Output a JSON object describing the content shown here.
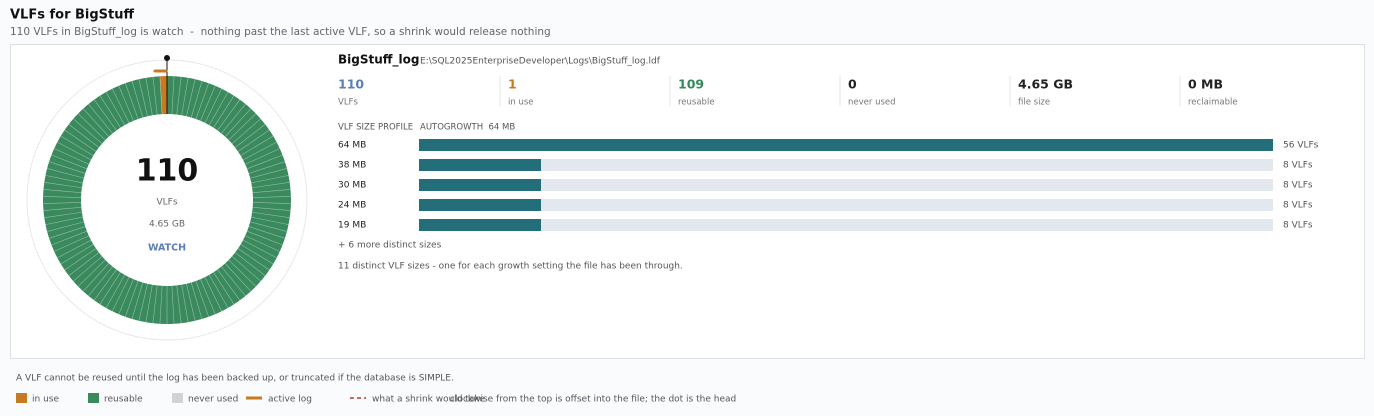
{
  "header": {
    "title": "VLFs for BigStuff",
    "subtitle": "110 VLFs in BigStuff_log is watch  -  nothing past the last active VLF, so a shrink would release nothing"
  },
  "donut": {
    "unit": "VLFs",
    "status": "WATCH",
    "colors": {
      "in_use": "#c77a22",
      "reusable": "#3a8a5e",
      "active_log": "#c77a22"
    }
  },
  "file": {
    "name": "BigStuff_log",
    "path": "E:\\SQL2025EnterpriseDeveloper\\Logs\\BigStuff_log.ldf"
  },
  "stats": [
    {
      "value": 110,
      "label": "VLFs",
      "color": "#5b7fb5"
    },
    {
      "value": 1,
      "label": "in use",
      "color": "#c77a22"
    },
    {
      "value": 109,
      "label": "reusable",
      "color": "#2e8a5a"
    },
    {
      "value": 0,
      "label": "never used",
      "color": "#222222"
    },
    {
      "value": "4.65 GB",
      "label": "file size",
      "color": "#222222"
    },
    {
      "value": "0 MB",
      "label": "reclaimable",
      "color": "#222222"
    }
  ],
  "profile": {
    "title": "VLF SIZE PROFILE",
    "autogrowth": "AUTOGROWTH  64 MB",
    "bar_color": "#236e78",
    "rows": [
      {
        "size": "64 MB",
        "count": 56,
        "count_label": "56 VLFs"
      },
      {
        "size": "38 MB",
        "count": 8,
        "count_label": "8 VLFs"
      },
      {
        "size": "30 MB",
        "count": 8,
        "count_label": "8 VLFs"
      },
      {
        "size": "24 MB",
        "count": 8,
        "count_label": "8 VLFs"
      },
      {
        "size": "19 MB",
        "count": 8,
        "count_label": "8 VLFs"
      }
    ],
    "more": "+ 6 more distinct sizes",
    "note": "11 distinct VLF sizes - one for each growth setting the file has been through."
  },
  "footer": {
    "note": "A VLF cannot be reused until the log has been backed up, or truncated if the database is SIMPLE.",
    "legend": [
      {
        "label": "in use",
        "color": "#c77a22",
        "shape": "square"
      },
      {
        "label": "reusable",
        "color": "#3a8a5e",
        "shape": "square"
      },
      {
        "label": "never used",
        "color": "#d0d3d8",
        "shape": "square"
      },
      {
        "label": "active log",
        "color": "#c77a22",
        "shape": "line"
      },
      {
        "label": "what a shrink would take",
        "color": "#c0392b",
        "shape": "dashed"
      }
    ],
    "explanation": "clockwise from the top is offset into the file; the dot is the head"
  }
}
